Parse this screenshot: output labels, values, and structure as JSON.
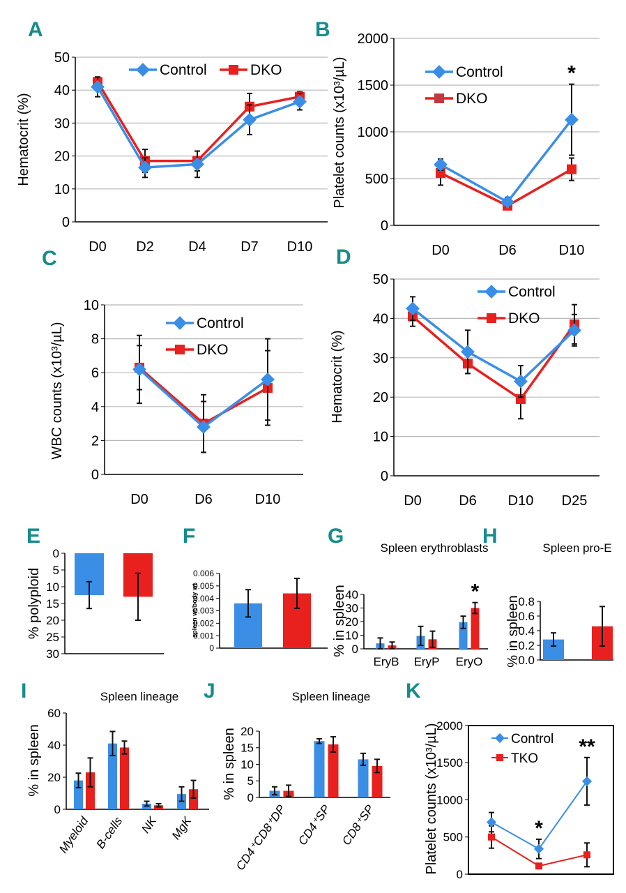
{
  "colors": {
    "control": "#3a8ee6",
    "mutant": "#e8201e",
    "letter": "#168c8c",
    "grid": "#b8b8b8"
  },
  "chart_data": [
    {
      "id": "A",
      "type": "line",
      "ylabel": "Hematocrit (%)",
      "ylim": [
        0,
        50
      ],
      "ystep": 10,
      "grid": true,
      "categories": [
        "D0",
        "D2",
        "D4",
        "D7",
        "D10"
      ],
      "legend": "top-center",
      "series": [
        {
          "name": "Control",
          "values": [
            41,
            16.5,
            17.5,
            31,
            36.5
          ],
          "errors": [
            3,
            3,
            4,
            4.5,
            2.5
          ]
        },
        {
          "name": "DKO",
          "values": [
            42.5,
            18.5,
            18.5,
            35,
            38
          ],
          "errors": [
            1.5,
            3.5,
            3,
            4,
            1.5
          ]
        }
      ]
    },
    {
      "id": "B",
      "type": "line",
      "ylabel": "Platelet counts (x10³/µL)",
      "ylim": [
        0,
        2000
      ],
      "ystep": 500,
      "grid": true,
      "categories": [
        "D0",
        "D6",
        "D10"
      ],
      "legend": "top-left",
      "annotations": [
        {
          "category": "D10",
          "text": "*"
        }
      ],
      "series": [
        {
          "name": "Control",
          "values": [
            650,
            250,
            1130
          ],
          "errors": [
            60,
            50,
            380
          ]
        },
        {
          "name": "DKO",
          "values": [
            560,
            210,
            600
          ],
          "errors": [
            130,
            40,
            120
          ]
        }
      ]
    },
    {
      "id": "C",
      "type": "line",
      "ylabel": "WBC counts (x10³/µL)",
      "ylim": [
        0,
        10
      ],
      "ystep": 2,
      "grid": true,
      "categories": [
        "D0",
        "D6",
        "D10"
      ],
      "legend": "top-right",
      "series": [
        {
          "name": "Control",
          "values": [
            6.2,
            2.8,
            5.6
          ],
          "errors": [
            2,
            1.5,
            2.4
          ]
        },
        {
          "name": "DKO",
          "values": [
            6.3,
            3.0,
            5.1
          ],
          "errors": [
            1.3,
            1.7,
            2.2
          ]
        }
      ]
    },
    {
      "id": "D",
      "type": "line",
      "ylabel": "Hematocrit (%)",
      "ylim": [
        0,
        50
      ],
      "ystep": 10,
      "grid": true,
      "categories": [
        "D0",
        "D6",
        "D10",
        "D25"
      ],
      "legend": "top-center",
      "series": [
        {
          "name": "Control",
          "values": [
            42.5,
            31.5,
            24,
            37
          ],
          "errors": [
            3,
            5.5,
            4,
            4
          ]
        },
        {
          "name": "DKO",
          "values": [
            40.5,
            28.5,
            19.5,
            38.5
          ],
          "errors": [
            2.5,
            2.5,
            5,
            5
          ]
        }
      ]
    },
    {
      "id": "E",
      "type": "bar",
      "ylabel": "% polyploid",
      "ylim": [
        0,
        30
      ],
      "ystep": 5,
      "inverted": true,
      "grid": false,
      "categories": [
        ""
      ],
      "series": [
        {
          "name": "Control",
          "values": [
            12.5
          ],
          "errors": [
            4
          ]
        },
        {
          "name": "DKO",
          "values": [
            13
          ],
          "errors": [
            7
          ]
        }
      ]
    },
    {
      "id": "F",
      "type": "bar",
      "ylabel": "spleen wt/body wt",
      "ylim": [
        0,
        0.006
      ],
      "ystep": 0.001,
      "grid": false,
      "categories": [
        ""
      ],
      "series": [
        {
          "name": "Control",
          "values": [
            0.0036
          ],
          "errors": [
            0.0011
          ]
        },
        {
          "name": "DKO",
          "values": [
            0.0044
          ],
          "errors": [
            0.0012
          ]
        }
      ]
    },
    {
      "id": "G",
      "type": "bar",
      "title": "Spleen erythroblasts",
      "ylabel": "% in spleen",
      "ylim": [
        0,
        40
      ],
      "ystep": 10,
      "grid": false,
      "categories": [
        "EryB",
        "EryP",
        "EryO"
      ],
      "annotations": [
        {
          "category": "EryO",
          "text": "*"
        }
      ],
      "series": [
        {
          "name": "Control",
          "values": [
            4,
            9.5,
            19.5
          ],
          "errors": [
            4,
            7,
            4.5
          ]
        },
        {
          "name": "DKO",
          "values": [
            2.5,
            7,
            30
          ],
          "errors": [
            2.5,
            6,
            4
          ]
        }
      ]
    },
    {
      "id": "H",
      "type": "bar",
      "title": "Spleen pro-E",
      "ylabel": "% in spleen",
      "ylim": [
        0,
        0.8
      ],
      "ystep": 0.2,
      "decimals": 1,
      "grid": false,
      "categories": [
        ""
      ],
      "series": [
        {
          "name": "Control",
          "values": [
            0.28
          ],
          "errors": [
            0.09
          ]
        },
        {
          "name": "DKO",
          "values": [
            0.46
          ],
          "errors": [
            0.27
          ]
        }
      ]
    },
    {
      "id": "I",
      "type": "bar",
      "title": "Spleen lineage",
      "ylabel": "% in spleen",
      "ylim": [
        0,
        60
      ],
      "ystep": 20,
      "grid": false,
      "categories": [
        "Myeloid",
        "B-cells",
        "NK",
        "MgK"
      ],
      "rotated_labels": true,
      "series": [
        {
          "name": "Control",
          "values": [
            18,
            41,
            3.5,
            9.5
          ],
          "errors": [
            4.5,
            7.5,
            1.5,
            4.5
          ]
        },
        {
          "name": "DKO",
          "values": [
            23,
            38.5,
            2.5,
            12.5
          ],
          "errors": [
            9,
            4,
            1,
            5.5
          ]
        }
      ]
    },
    {
      "id": "J",
      "type": "bar",
      "title": "Spleen lineage",
      "ylabel": "% in spleen",
      "ylim": [
        0,
        20
      ],
      "ystep": 5,
      "grid": false,
      "categories": [
        "CD4⁺CD8⁺DP",
        "CD4⁺SP",
        "CD8⁺SP"
      ],
      "rotated_labels": true,
      "series": [
        {
          "name": "Control",
          "values": [
            2,
            17,
            11.5
          ],
          "errors": [
            1.2,
            0.7,
            1.8
          ]
        },
        {
          "name": "DKO",
          "values": [
            2,
            16,
            9.5
          ],
          "errors": [
            1.7,
            2.3,
            2
          ]
        }
      ]
    },
    {
      "id": "K",
      "type": "line",
      "ylabel": "Platelet counts (x10³/µL)",
      "ylim": [
        0,
        2000
      ],
      "ystep": 500,
      "grid": false,
      "boxed": true,
      "categories": [
        "D0",
        "D6",
        "D10"
      ],
      "legend": "top-left",
      "annotations": [
        {
          "category": "D6",
          "text": "*"
        },
        {
          "category": "D10",
          "text": "**"
        }
      ],
      "series": [
        {
          "name": "Control",
          "values": [
            700,
            340,
            1250
          ],
          "errors": [
            130,
            130,
            320
          ]
        },
        {
          "name": "TKO",
          "values": [
            500,
            110,
            260
          ],
          "errors": [
            150,
            20,
            160
          ]
        }
      ]
    }
  ]
}
